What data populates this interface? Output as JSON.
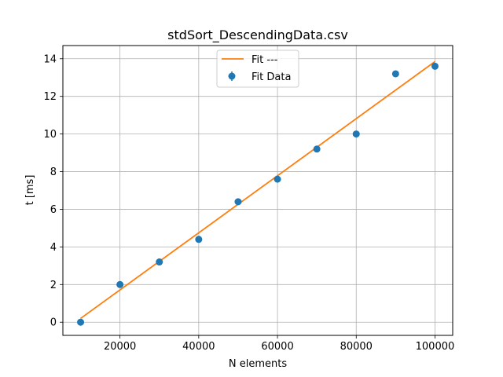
{
  "chart_data": {
    "type": "scatter",
    "title": "stdSort_DescendingData.csv",
    "xlabel": "N elements",
    "ylabel": "t [ms]",
    "xlim": [
      5500,
      104500
    ],
    "ylim": [
      -0.7,
      14.7
    ],
    "xticks": [
      20000,
      40000,
      60000,
      80000,
      100000
    ],
    "xtick_labels": [
      "20000",
      "40000",
      "60000",
      "80000",
      "100000"
    ],
    "yticks": [
      0,
      2,
      4,
      6,
      8,
      10,
      12,
      14
    ],
    "ytick_labels": [
      "0",
      "2",
      "4",
      "6",
      "8",
      "10",
      "12",
      "14"
    ],
    "grid": true,
    "legend_position": "top-center",
    "series": [
      {
        "name": "Fit ---",
        "kind": "line",
        "color": "#ff7f0e",
        "x": [
          10000,
          100000
        ],
        "y": [
          0.2,
          13.85
        ]
      },
      {
        "name": "Fit Data",
        "kind": "scatter",
        "color": "#1f77b4",
        "x": [
          10000,
          20000,
          30000,
          40000,
          50000,
          60000,
          70000,
          80000,
          90000,
          100000
        ],
        "y": [
          0.0,
          2.0,
          3.2,
          4.4,
          6.4,
          7.6,
          9.2,
          10.0,
          13.2,
          13.6
        ]
      }
    ]
  }
}
